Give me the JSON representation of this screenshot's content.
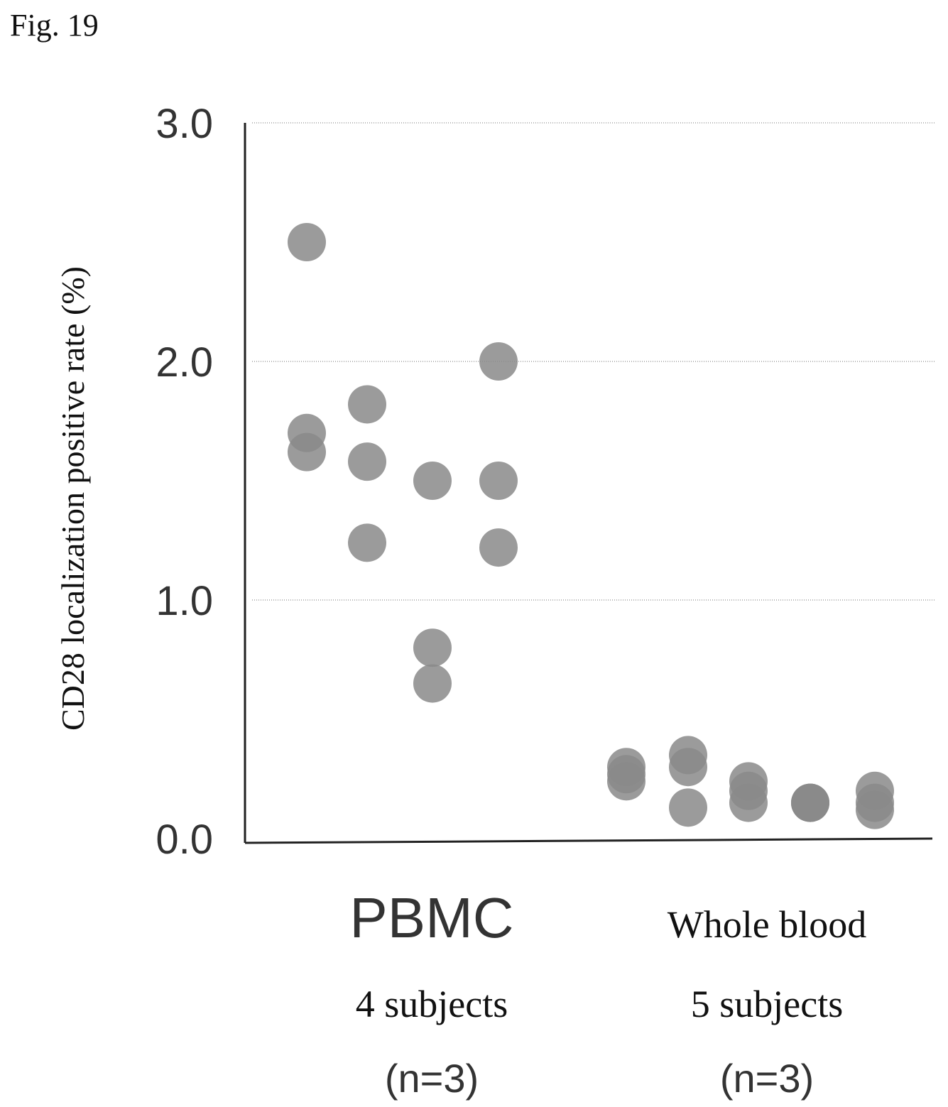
{
  "figure_label": "Fig. 19",
  "chart_data": {
    "type": "scatter",
    "ylabel": "CD28 localization positive rate (%)",
    "ylim": [
      0.0,
      3.0
    ],
    "yticks": [
      "0.0",
      "1.0",
      "2.0",
      "3.0"
    ],
    "grid": true,
    "point_color": "#8a8a8a",
    "groups": [
      {
        "name": "PBMC",
        "subtitle": "4 subjects",
        "n_label": "(n=3)",
        "subjects": [
          {
            "values": [
              2.5,
              1.7,
              1.62
            ]
          },
          {
            "values": [
              1.82,
              1.58,
              1.24
            ]
          },
          {
            "values": [
              1.5,
              0.8,
              0.65
            ]
          },
          {
            "values": [
              2.0,
              1.5,
              1.22
            ]
          }
        ]
      },
      {
        "name": "Whole blood",
        "subtitle": "5 subjects",
        "n_label": "(n=3)",
        "subjects": [
          {
            "values": [
              0.3,
              0.27,
              0.24
            ]
          },
          {
            "values": [
              0.35,
              0.3,
              0.13
            ]
          },
          {
            "values": [
              0.24,
              0.2,
              0.15
            ]
          },
          {
            "values": [
              0.15,
              0.15,
              0.15
            ]
          },
          {
            "values": [
              0.2,
              0.15,
              0.12
            ]
          }
        ]
      }
    ]
  }
}
